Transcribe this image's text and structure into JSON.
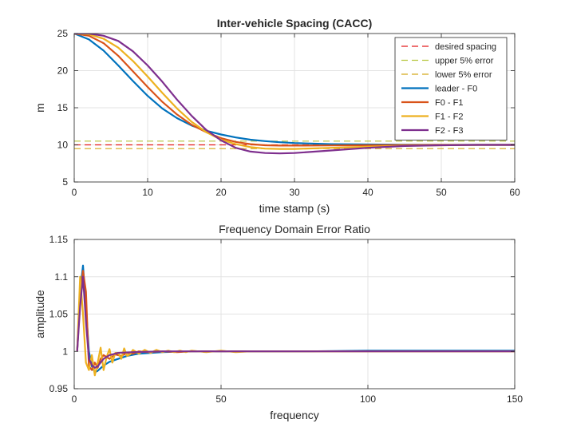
{
  "colors": {
    "desired": "#e41a1c",
    "upper": "#b5c43a",
    "lower": "#d4a91a",
    "leader": "#0072BD",
    "f0f1": "#D95319",
    "f1f2": "#EDB120",
    "f2f3": "#7E2F8E",
    "grid": "#e3e3e3",
    "axis": "#262626"
  },
  "chart_data": [
    {
      "type": "line",
      "title": "Inter-vehicle Spacing (CACC)",
      "xlabel": "time stamp (s)",
      "ylabel": "m",
      "xlim": [
        0,
        60
      ],
      "ylim": [
        5,
        25
      ],
      "xticks": [
        0,
        10,
        20,
        30,
        40,
        50,
        60
      ],
      "yticks": [
        5,
        10,
        15,
        20,
        25
      ],
      "grid": true,
      "legend_position": "top-right",
      "series": [
        {
          "name": "desired spacing",
          "key": "desired",
          "dashed": true,
          "x": [
            0,
            60
          ],
          "y": [
            10,
            10
          ]
        },
        {
          "name": "upper 5% error",
          "key": "upper",
          "dashed": true,
          "x": [
            0,
            60
          ],
          "y": [
            10.5,
            10.5
          ]
        },
        {
          "name": "lower 5% error",
          "key": "lower",
          "dashed": true,
          "x": [
            0,
            60
          ],
          "y": [
            9.5,
            9.5
          ]
        },
        {
          "name": "leader - F0",
          "key": "leader",
          "dashed": false,
          "x": [
            0,
            2,
            4,
            6,
            8,
            10,
            12,
            14,
            16,
            18,
            20,
            22,
            24,
            26,
            28,
            30,
            35,
            40,
            45,
            50,
            55,
            60
          ],
          "y": [
            25,
            24.2,
            22.7,
            20.7,
            18.6,
            16.6,
            14.9,
            13.6,
            12.6,
            11.9,
            11.4,
            11.0,
            10.7,
            10.5,
            10.35,
            10.25,
            10.1,
            10.05,
            10.02,
            10.0,
            10.0,
            10.0
          ]
        },
        {
          "name": "F0 - F1",
          "key": "f0f1",
          "dashed": false,
          "x": [
            0,
            2,
            4,
            6,
            8,
            10,
            12,
            14,
            16,
            18,
            20,
            22,
            24,
            26,
            28,
            30,
            35,
            40,
            45,
            50,
            55,
            60
          ],
          "y": [
            25,
            24.7,
            23.7,
            22.0,
            19.9,
            17.8,
            15.8,
            14.1,
            12.7,
            11.7,
            10.9,
            10.4,
            10.1,
            9.95,
            9.9,
            9.9,
            9.92,
            9.95,
            9.98,
            10.0,
            10.0,
            10.0
          ]
        },
        {
          "name": "F1 - F2",
          "key": "f1f2",
          "dashed": false,
          "x": [
            0,
            2,
            4,
            6,
            8,
            10,
            12,
            14,
            16,
            18,
            20,
            22,
            24,
            26,
            28,
            30,
            35,
            40,
            45,
            50,
            55,
            60
          ],
          "y": [
            25,
            24.9,
            24.3,
            23.1,
            21.3,
            19.2,
            17.0,
            14.9,
            13.1,
            11.7,
            10.7,
            10.1,
            9.7,
            9.5,
            9.45,
            9.45,
            9.6,
            9.75,
            9.88,
            9.95,
            10.0,
            10.0
          ]
        },
        {
          "name": "F2 - F3",
          "key": "f2f3",
          "dashed": false,
          "x": [
            0,
            2,
            4,
            6,
            8,
            10,
            12,
            14,
            16,
            18,
            20,
            22,
            24,
            26,
            28,
            30,
            35,
            40,
            45,
            50,
            55,
            60
          ],
          "y": [
            25,
            25.0,
            24.7,
            24.0,
            22.6,
            20.7,
            18.5,
            16.1,
            13.9,
            12.0,
            10.6,
            9.6,
            9.1,
            8.9,
            8.85,
            8.9,
            9.25,
            9.6,
            9.85,
            9.95,
            10.0,
            10.0
          ]
        }
      ]
    },
    {
      "type": "line",
      "title": "Frequency Domain Error Ratio",
      "xlabel": "frequency",
      "ylabel": "amplitude",
      "xlim": [
        0,
        150
      ],
      "ylim": [
        0.95,
        1.15
      ],
      "xticks": [
        0,
        50,
        100,
        150
      ],
      "yticks": [
        0.95,
        1,
        1.05,
        1.1,
        1.15
      ],
      "ytick_labels": [
        "0.95",
        "1",
        "1.05",
        "1.1",
        "1.15"
      ],
      "grid": true,
      "series": [
        {
          "name": "leader - F0",
          "key": "leader",
          "x": [
            1,
            2,
            3,
            4,
            5,
            6,
            7,
            8,
            10,
            12,
            15,
            18,
            22,
            26,
            30,
            40,
            50,
            60,
            80,
            100,
            120,
            150
          ],
          "y": [
            1.0,
            1.08,
            1.115,
            1.06,
            1.0,
            0.98,
            0.972,
            0.974,
            0.981,
            0.986,
            0.99,
            0.994,
            0.997,
            0.998,
            0.999,
            1.0,
            1.0,
            1.0,
            1.0,
            1.001,
            1.001,
            1.001
          ]
        },
        {
          "name": "F0 - F1",
          "key": "f0f1",
          "x": [
            1,
            2,
            3,
            4,
            5,
            6,
            7,
            8,
            9,
            10,
            12,
            14,
            16,
            18,
            20,
            22,
            25,
            30,
            35,
            40,
            50,
            60,
            80,
            100,
            150
          ],
          "y": [
            1.0,
            1.07,
            1.108,
            1.08,
            0.98,
            0.975,
            0.985,
            0.978,
            0.99,
            0.995,
            0.99,
            0.996,
            0.994,
            0.998,
            0.997,
            1.0,
            0.999,
            1.0,
            0.999,
            1.0,
            1.0,
            1.0,
            1.0,
            1.0,
            1.0
          ]
        },
        {
          "name": "F1 - F2",
          "key": "f1f2",
          "x": [
            1,
            2,
            3,
            4,
            5,
            6,
            7,
            8,
            9,
            10,
            11,
            12,
            13,
            14,
            15,
            16,
            17,
            18,
            19,
            20,
            22,
            24,
            26,
            28,
            30,
            32,
            34,
            36,
            38,
            40,
            45,
            50,
            55,
            60,
            70,
            80,
            90,
            100,
            120,
            150
          ],
          "y": [
            1.0,
            1.1,
            1.05,
            0.985,
            0.975,
            0.995,
            0.968,
            0.985,
            1.005,
            0.975,
            0.992,
            1.003,
            0.985,
            0.998,
            0.998,
            0.99,
            1.004,
            0.994,
            0.996,
            1.002,
            0.997,
            1.002,
            0.998,
            1.002,
            0.999,
            1.001,
            0.999,
            1.001,
            0.999,
            1.001,
            0.999,
            1.001,
            0.999,
            1.0,
            1.0,
            1.0,
            1.0,
            1.0,
            1.0,
            1.0
          ]
        },
        {
          "name": "F2 - F3",
          "key": "f2f3",
          "x": [
            1,
            2,
            3,
            4,
            5,
            6,
            7,
            8,
            10,
            12,
            15,
            20,
            30,
            50,
            100,
            150
          ],
          "y": [
            1.0,
            1.06,
            1.1,
            1.04,
            0.99,
            0.982,
            0.978,
            0.98,
            0.99,
            0.995,
            0.998,
            0.999,
            1.0,
            1.0,
            1.0,
            1.0
          ]
        }
      ]
    }
  ]
}
